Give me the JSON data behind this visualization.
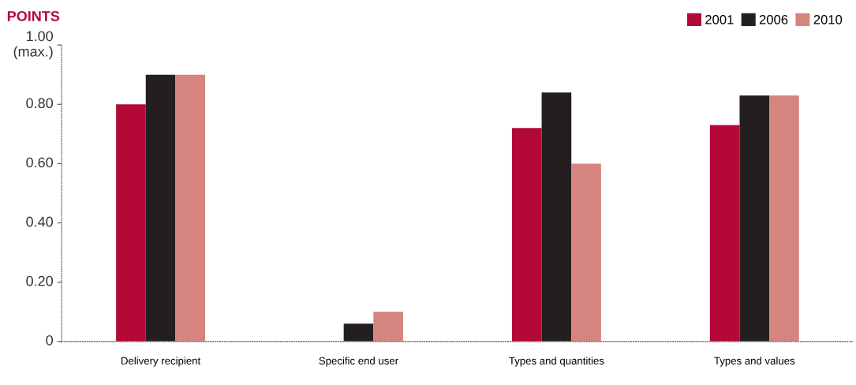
{
  "chart_data": {
    "type": "bar",
    "title": "POINTS",
    "categories": [
      "Delivery recipient",
      "Specific end user",
      "Types and quantities",
      "Types and values"
    ],
    "series": [
      {
        "name": "2001",
        "color": "#b30838",
        "values": [
          0.8,
          0,
          0.72,
          0.73
        ]
      },
      {
        "name": "2006",
        "color": "#231f20",
        "values": [
          0.9,
          0.06,
          0.84,
          0.83
        ]
      },
      {
        "name": "2010",
        "color": "#d5847f",
        "values": [
          0.9,
          0.1,
          0.6,
          0.83
        ]
      }
    ],
    "ylim": [
      0,
      1.0
    ],
    "yticks": [
      {
        "value": 0,
        "label": "0"
      },
      {
        "value": 0.2,
        "label": "0.20"
      },
      {
        "value": 0.4,
        "label": "0.40"
      },
      {
        "value": 0.6,
        "label": "0.60"
      },
      {
        "value": 0.8,
        "label": "0.80"
      },
      {
        "value": 1.0,
        "label": "1.00\n(max.)"
      }
    ],
    "grid": false,
    "legend": "top right"
  }
}
